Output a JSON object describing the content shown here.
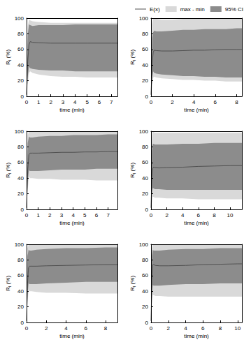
{
  "chart_data": [
    {
      "type": "line",
      "xlabel": "time (min)",
      "ylabel": "RI (%)",
      "xlim": [
        0,
        7.5
      ],
      "xticks": [
        0,
        1,
        2,
        3,
        4,
        5,
        6,
        7
      ],
      "ylim": [
        0,
        100
      ],
      "yticks": [
        0,
        20,
        40,
        60,
        80,
        100
      ],
      "x": [
        0,
        0.1,
        0.2,
        0.3,
        0.5,
        1,
        2,
        3,
        4,
        5,
        6,
        7,
        7.5
      ],
      "series": [
        {
          "name": "E(x)",
          "type": "line",
          "color": "#505050",
          "values": [
            2,
            45,
            66,
            70,
            69,
            68.5,
            68,
            68,
            68,
            68,
            68,
            68,
            68
          ]
        },
        {
          "name": "max - min",
          "type": "area",
          "color": "#d9d9d9",
          "lower": [
            0,
            15,
            30,
            32,
            30,
            28,
            26,
            25,
            25,
            24,
            24,
            24,
            24
          ],
          "upper": [
            5,
            90,
            98,
            97,
            96,
            95,
            94,
            94,
            94,
            94,
            94,
            94,
            94
          ]
        },
        {
          "name": "95% CI",
          "type": "area",
          "color": "#8c8c8c",
          "lower": [
            1,
            25,
            38,
            36,
            35,
            34,
            33,
            33,
            32,
            32,
            32,
            32,
            32
          ],
          "upper": [
            4,
            80,
            92,
            91,
            90,
            91,
            91,
            91,
            92,
            92,
            92,
            92,
            92
          ]
        }
      ]
    },
    {
      "type": "line",
      "xlabel": "time (min)",
      "ylabel": "RI (%)",
      "legend": "upper right",
      "xlim": [
        0,
        8.5
      ],
      "xticks": [
        0,
        2,
        4,
        6,
        8
      ],
      "ylim": [
        0,
        100
      ],
      "yticks": [
        0,
        20,
        40,
        60,
        80,
        100
      ],
      "x": [
        0,
        0.1,
        0.2,
        0.3,
        0.5,
        1,
        2,
        3,
        4,
        5,
        6,
        7,
        8,
        8.5
      ],
      "series": [
        {
          "name": "E(x)",
          "type": "line",
          "color": "#505050",
          "values": [
            2,
            40,
            56,
            59,
            58.5,
            58,
            58,
            58.5,
            59,
            59,
            59.5,
            60,
            60,
            60
          ]
        },
        {
          "name": "max - min",
          "type": "area",
          "color": "#d9d9d9",
          "lower": [
            0,
            12,
            24,
            25,
            24,
            23,
            22,
            21,
            21,
            20,
            20,
            19,
            19,
            19
          ],
          "upper": [
            5,
            92,
            100,
            100,
            99,
            98,
            98,
            99,
            99,
            99,
            99,
            99,
            99,
            99
          ]
        },
        {
          "name": "95% CI",
          "type": "area",
          "color": "#8c8c8c",
          "lower": [
            1,
            22,
            32,
            30,
            29,
            28,
            27,
            26,
            26,
            25,
            25,
            24,
            24,
            24
          ],
          "upper": [
            4,
            75,
            82,
            84,
            83,
            83,
            84,
            85,
            85,
            86,
            86,
            86,
            87,
            87
          ]
        }
      ]
    },
    {
      "type": "line",
      "xlabel": "time (min)",
      "ylabel": "RI (%)",
      "xlim": [
        0,
        7.8
      ],
      "xticks": [
        0,
        1,
        2,
        3,
        4,
        5,
        6,
        7
      ],
      "ylim": [
        0,
        100
      ],
      "yticks": [
        0,
        20,
        40,
        60,
        80,
        100
      ],
      "x": [
        0,
        0.1,
        0.2,
        0.3,
        0.5,
        1,
        2,
        3,
        4,
        5,
        6,
        7,
        7.8
      ],
      "series": [
        {
          "name": "E(x)",
          "type": "line",
          "color": "#505050",
          "values": [
            2,
            50,
            70,
            72,
            72,
            72,
            72.5,
            73,
            73,
            73.5,
            73.5,
            74,
            74
          ]
        },
        {
          "name": "max - min",
          "type": "area",
          "color": "#d9d9d9",
          "lower": [
            0,
            25,
            42,
            40,
            40,
            39,
            39,
            38,
            38,
            38,
            37,
            37,
            37
          ],
          "upper": [
            5,
            95,
            100,
            99,
            99,
            99,
            99,
            99,
            99,
            99,
            99,
            99,
            99
          ]
        },
        {
          "name": "95% CI",
          "type": "area",
          "color": "#8c8c8c",
          "lower": [
            1,
            35,
            50,
            49,
            49,
            49,
            50,
            51,
            51,
            51,
            52,
            52,
            52
          ],
          "upper": [
            4,
            85,
            93,
            92,
            92,
            93,
            94,
            94,
            95,
            95,
            95,
            96,
            96
          ]
        }
      ]
    },
    {
      "type": "line",
      "xlabel": "time (min)",
      "ylabel": "RI (%)",
      "xlim": [
        0,
        11.5
      ],
      "xticks": [
        0,
        2,
        4,
        6,
        8,
        10
      ],
      "ylim": [
        0,
        100
      ],
      "yticks": [
        0,
        20,
        40,
        60,
        80,
        100
      ],
      "x": [
        0,
        0.1,
        0.2,
        0.3,
        0.5,
        1,
        2,
        4,
        6,
        8,
        10,
        11.5
      ],
      "series": [
        {
          "name": "E(x)",
          "type": "line",
          "color": "#505050",
          "values": [
            2,
            40,
            52,
            54,
            53.5,
            53,
            53.5,
            54,
            55,
            55.5,
            56,
            56
          ]
        },
        {
          "name": "max - min",
          "type": "area",
          "color": "#d9d9d9",
          "lower": [
            0,
            8,
            16,
            16,
            15,
            15,
            14,
            14,
            13,
            13,
            13,
            13
          ],
          "upper": [
            5,
            92,
            99,
            99,
            98,
            98,
            98,
            98,
            98,
            98,
            98,
            98
          ]
        },
        {
          "name": "95% CI",
          "type": "area",
          "color": "#8c8c8c",
          "lower": [
            1,
            18,
            27,
            27,
            26,
            26,
            25,
            25,
            25,
            25,
            25,
            25
          ],
          "upper": [
            4,
            75,
            83,
            84,
            83,
            83,
            83,
            84,
            84,
            85,
            85,
            85
          ]
        }
      ]
    },
    {
      "type": "line",
      "xlabel": "time (min)",
      "ylabel": "RI (%)",
      "xlim": [
        0,
        9.2
      ],
      "xticks": [
        0,
        2,
        4,
        6,
        8
      ],
      "ylim": [
        0,
        100
      ],
      "yticks": [
        0,
        20,
        40,
        60,
        80,
        100
      ],
      "x": [
        0,
        0.1,
        0.2,
        0.3,
        0.5,
        1,
        2,
        4,
        6,
        8,
        9.2
      ],
      "series": [
        {
          "name": "E(x)",
          "type": "line",
          "color": "#505050",
          "values": [
            2,
            50,
            70,
            72,
            72,
            72,
            72.5,
            73,
            73.5,
            74,
            74
          ]
        },
        {
          "name": "max - min",
          "type": "area",
          "color": "#d9d9d9",
          "lower": [
            0,
            25,
            41,
            40,
            40,
            39,
            38,
            38,
            37,
            37,
            37
          ],
          "upper": [
            5,
            95,
            99,
            99,
            99,
            99,
            99,
            99,
            99,
            99,
            99
          ]
        },
        {
          "name": "95% CI",
          "type": "area",
          "color": "#8c8c8c",
          "lower": [
            1,
            35,
            50,
            49,
            49,
            49,
            50,
            51,
            52,
            52,
            52
          ],
          "upper": [
            4,
            85,
            93,
            92,
            92,
            93,
            94,
            95,
            95,
            96,
            96
          ]
        }
      ]
    },
    {
      "type": "line",
      "xlabel": "time (min)",
      "ylabel": "RI (%)",
      "xlim": [
        0,
        10.5
      ],
      "xticks": [
        0,
        2,
        4,
        6,
        8,
        10
      ],
      "ylim": [
        0,
        100
      ],
      "yticks": [
        0,
        20,
        40,
        60,
        80,
        100
      ],
      "x": [
        0,
        0.1,
        0.2,
        0.3,
        0.5,
        1,
        2,
        4,
        6,
        8,
        10,
        10.5
      ],
      "series": [
        {
          "name": "E(x)",
          "type": "line",
          "color": "#505050",
          "values": [
            2,
            55,
            74,
            74,
            73,
            72.5,
            72.5,
            73,
            74,
            74.5,
            75,
            75
          ]
        },
        {
          "name": "max - min",
          "type": "area",
          "color": "#d9d9d9",
          "lower": [
            0,
            22,
            35,
            35,
            34,
            34,
            33,
            33,
            33,
            33,
            33,
            33
          ],
          "upper": [
            5,
            95,
            100,
            99,
            99,
            99,
            99,
            99,
            99,
            99,
            99,
            99
          ]
        },
        {
          "name": "95% CI",
          "type": "area",
          "color": "#8c8c8c",
          "lower": [
            1,
            35,
            48,
            47,
            47,
            47,
            48,
            49,
            49,
            50,
            50,
            50
          ],
          "upper": [
            4,
            85,
            93,
            92,
            92,
            92,
            93,
            94,
            94,
            95,
            95,
            95
          ]
        }
      ]
    }
  ]
}
